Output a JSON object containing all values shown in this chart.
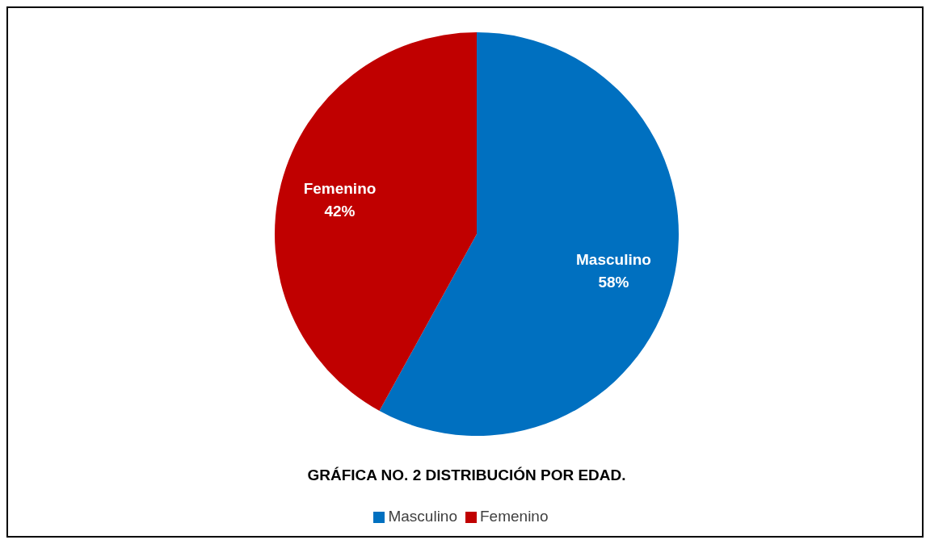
{
  "chart_data": {
    "type": "pie",
    "title": "GRÁFICA NO. 2 DISTRIBUCIÓN POR EDAD.",
    "categories": [
      "Masculino",
      "Femenino"
    ],
    "values": [
      58,
      42
    ],
    "colors": [
      "#0070c0",
      "#c00000"
    ],
    "value_labels": [
      "58%",
      "42%"
    ],
    "legend": "bottom"
  }
}
